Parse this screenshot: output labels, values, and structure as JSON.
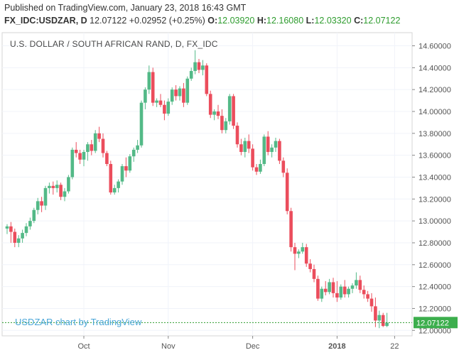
{
  "header": {
    "published": "Published on TradingView.com, January 23, 2018 16:43 GMT",
    "symbol": "FX_IDC:USDZAR, D",
    "last": "12.07122",
    "change": "+0.02952 (+0.25%)",
    "open_label": "O:",
    "open": "12.03920",
    "high_label": "H:",
    "high": "12.16080",
    "low_label": "L:",
    "low": "12.03320",
    "close_label": "C:",
    "close": "12.07122"
  },
  "watermark": "USDZAR chart by TradingView",
  "colors": {
    "up": "#53b987",
    "down": "#eb4d5c",
    "grid": "#f0f3fa",
    "axis": "#555555",
    "lastline": "#2e9c2e"
  },
  "chart_data": {
    "type": "candlestick",
    "title": "U.S. DOLLAR / SOUTH AFRICAN RAND, D, FX_IDC",
    "ylim": [
      11.95,
      14.72
    ],
    "y_ticks": [
      "14.60000",
      "14.40000",
      "14.20000",
      "14.00000",
      "13.80000",
      "13.60000",
      "13.40000",
      "13.20000",
      "13.00000",
      "12.80000",
      "12.60000",
      "12.40000",
      "12.20000",
      "12.00000"
    ],
    "x_labels": [
      {
        "label": "Oct",
        "index": 20,
        "bold": false
      },
      {
        "label": "Nov",
        "index": 42,
        "bold": false
      },
      {
        "label": "Dec",
        "index": 64,
        "bold": false
      },
      {
        "label": "2018",
        "index": 86,
        "bold": true
      },
      {
        "label": "22",
        "index": 101,
        "bold": false
      }
    ],
    "last_price": 12.07122,
    "last_price_label": "12.07122",
    "candles": [
      {
        "o": 12.93,
        "h": 12.97,
        "l": 12.88,
        "c": 12.95
      },
      {
        "o": 12.95,
        "h": 12.99,
        "l": 12.8,
        "c": 12.9
      },
      {
        "o": 12.9,
        "h": 12.93,
        "l": 12.76,
        "c": 12.8
      },
      {
        "o": 12.8,
        "h": 12.87,
        "l": 12.76,
        "c": 12.84
      },
      {
        "o": 12.84,
        "h": 12.92,
        "l": 12.8,
        "c": 12.89
      },
      {
        "o": 12.89,
        "h": 12.98,
        "l": 12.86,
        "c": 12.95
      },
      {
        "o": 12.95,
        "h": 13.03,
        "l": 12.92,
        "c": 13.0
      },
      {
        "o": 13.0,
        "h": 13.12,
        "l": 12.98,
        "c": 13.1
      },
      {
        "o": 13.1,
        "h": 13.21,
        "l": 13.06,
        "c": 13.18
      },
      {
        "o": 13.18,
        "h": 13.22,
        "l": 13.08,
        "c": 13.14
      },
      {
        "o": 13.14,
        "h": 13.32,
        "l": 13.1,
        "c": 13.3
      },
      {
        "o": 13.3,
        "h": 13.35,
        "l": 13.25,
        "c": 13.32
      },
      {
        "o": 13.32,
        "h": 13.36,
        "l": 13.24,
        "c": 13.3
      },
      {
        "o": 13.3,
        "h": 13.37,
        "l": 13.26,
        "c": 13.33
      },
      {
        "o": 13.33,
        "h": 13.35,
        "l": 13.19,
        "c": 13.22
      },
      {
        "o": 13.22,
        "h": 13.3,
        "l": 13.18,
        "c": 13.27
      },
      {
        "o": 13.27,
        "h": 13.42,
        "l": 13.25,
        "c": 13.4
      },
      {
        "o": 13.4,
        "h": 13.67,
        "l": 13.38,
        "c": 13.65
      },
      {
        "o": 13.65,
        "h": 13.72,
        "l": 13.58,
        "c": 13.62
      },
      {
        "o": 13.62,
        "h": 13.65,
        "l": 13.52,
        "c": 13.56
      },
      {
        "o": 13.56,
        "h": 13.65,
        "l": 13.5,
        "c": 13.63
      },
      {
        "o": 13.63,
        "h": 13.72,
        "l": 13.55,
        "c": 13.7
      },
      {
        "o": 13.7,
        "h": 13.74,
        "l": 13.6,
        "c": 13.64
      },
      {
        "o": 13.64,
        "h": 13.83,
        "l": 13.62,
        "c": 13.8
      },
      {
        "o": 13.8,
        "h": 13.86,
        "l": 13.72,
        "c": 13.75
      },
      {
        "o": 13.75,
        "h": 13.8,
        "l": 13.58,
        "c": 13.62
      },
      {
        "o": 13.62,
        "h": 13.64,
        "l": 13.5,
        "c": 13.52
      },
      {
        "o": 13.52,
        "h": 13.55,
        "l": 13.24,
        "c": 13.26
      },
      {
        "o": 13.26,
        "h": 13.33,
        "l": 13.24,
        "c": 13.3
      },
      {
        "o": 13.3,
        "h": 13.38,
        "l": 13.26,
        "c": 13.36
      },
      {
        "o": 13.36,
        "h": 13.52,
        "l": 13.33,
        "c": 13.5
      },
      {
        "o": 13.5,
        "h": 13.58,
        "l": 13.4,
        "c": 13.46
      },
      {
        "o": 13.46,
        "h": 13.61,
        "l": 13.44,
        "c": 13.59
      },
      {
        "o": 13.59,
        "h": 13.67,
        "l": 13.54,
        "c": 13.65
      },
      {
        "o": 13.65,
        "h": 13.74,
        "l": 13.62,
        "c": 13.69
      },
      {
        "o": 13.69,
        "h": 14.1,
        "l": 13.67,
        "c": 14.08
      },
      {
        "o": 14.08,
        "h": 14.22,
        "l": 14.02,
        "c": 14.2
      },
      {
        "o": 14.2,
        "h": 14.42,
        "l": 14.16,
        "c": 14.36
      },
      {
        "o": 14.36,
        "h": 14.4,
        "l": 14.05,
        "c": 14.08
      },
      {
        "o": 14.08,
        "h": 14.12,
        "l": 14.04,
        "c": 14.1
      },
      {
        "o": 14.1,
        "h": 14.16,
        "l": 14.04,
        "c": 14.06
      },
      {
        "o": 14.06,
        "h": 14.1,
        "l": 13.92,
        "c": 13.98
      },
      {
        "o": 13.98,
        "h": 14.12,
        "l": 13.96,
        "c": 14.09
      },
      {
        "o": 14.09,
        "h": 14.22,
        "l": 14.06,
        "c": 14.2
      },
      {
        "o": 14.2,
        "h": 14.24,
        "l": 14.1,
        "c": 14.14
      },
      {
        "o": 14.14,
        "h": 14.23,
        "l": 14.1,
        "c": 14.21
      },
      {
        "o": 14.21,
        "h": 14.26,
        "l": 14.04,
        "c": 14.08
      },
      {
        "o": 14.08,
        "h": 14.32,
        "l": 14.06,
        "c": 14.3
      },
      {
        "o": 14.3,
        "h": 14.4,
        "l": 14.28,
        "c": 14.37
      },
      {
        "o": 14.37,
        "h": 14.56,
        "l": 14.34,
        "c": 14.45
      },
      {
        "o": 14.45,
        "h": 14.48,
        "l": 14.35,
        "c": 14.38
      },
      {
        "o": 14.38,
        "h": 14.47,
        "l": 14.33,
        "c": 14.42
      },
      {
        "o": 14.42,
        "h": 14.44,
        "l": 14.14,
        "c": 14.16
      },
      {
        "o": 14.16,
        "h": 14.19,
        "l": 13.94,
        "c": 13.97
      },
      {
        "o": 13.97,
        "h": 14.02,
        "l": 13.92,
        "c": 14.0
      },
      {
        "o": 14.0,
        "h": 14.06,
        "l": 13.93,
        "c": 13.96
      },
      {
        "o": 13.96,
        "h": 14.02,
        "l": 13.8,
        "c": 13.83
      },
      {
        "o": 13.83,
        "h": 13.94,
        "l": 13.8,
        "c": 13.91
      },
      {
        "o": 13.91,
        "h": 14.16,
        "l": 13.88,
        "c": 14.14
      },
      {
        "o": 14.14,
        "h": 14.16,
        "l": 13.84,
        "c": 13.87
      },
      {
        "o": 13.87,
        "h": 13.9,
        "l": 13.67,
        "c": 13.7
      },
      {
        "o": 13.7,
        "h": 13.75,
        "l": 13.6,
        "c": 13.63
      },
      {
        "o": 13.63,
        "h": 13.76,
        "l": 13.58,
        "c": 13.73
      },
      {
        "o": 13.73,
        "h": 13.79,
        "l": 13.62,
        "c": 13.66
      },
      {
        "o": 13.66,
        "h": 13.7,
        "l": 13.46,
        "c": 13.49
      },
      {
        "o": 13.49,
        "h": 13.52,
        "l": 13.42,
        "c": 13.45
      },
      {
        "o": 13.45,
        "h": 13.56,
        "l": 13.43,
        "c": 13.52
      },
      {
        "o": 13.52,
        "h": 13.79,
        "l": 13.5,
        "c": 13.77
      },
      {
        "o": 13.77,
        "h": 13.82,
        "l": 13.6,
        "c": 13.63
      },
      {
        "o": 13.63,
        "h": 13.7,
        "l": 13.58,
        "c": 13.67
      },
      {
        "o": 13.67,
        "h": 13.76,
        "l": 13.63,
        "c": 13.73
      },
      {
        "o": 13.73,
        "h": 13.75,
        "l": 13.52,
        "c": 13.55
      },
      {
        "o": 13.55,
        "h": 13.58,
        "l": 13.4,
        "c": 13.44
      },
      {
        "o": 13.44,
        "h": 13.48,
        "l": 13.06,
        "c": 13.09
      },
      {
        "o": 13.09,
        "h": 13.12,
        "l": 12.72,
        "c": 12.76
      },
      {
        "o": 12.76,
        "h": 12.8,
        "l": 12.55,
        "c": 12.7
      },
      {
        "o": 12.7,
        "h": 12.74,
        "l": 12.66,
        "c": 12.72
      },
      {
        "o": 12.72,
        "h": 12.8,
        "l": 12.7,
        "c": 12.76
      },
      {
        "o": 12.76,
        "h": 12.79,
        "l": 12.58,
        "c": 12.61
      },
      {
        "o": 12.61,
        "h": 12.65,
        "l": 12.53,
        "c": 12.56
      },
      {
        "o": 12.56,
        "h": 12.6,
        "l": 12.44,
        "c": 12.47
      },
      {
        "o": 12.47,
        "h": 12.5,
        "l": 12.27,
        "c": 12.29
      },
      {
        "o": 12.29,
        "h": 12.4,
        "l": 12.26,
        "c": 12.38
      },
      {
        "o": 12.38,
        "h": 12.45,
        "l": 12.32,
        "c": 12.35
      },
      {
        "o": 12.35,
        "h": 12.47,
        "l": 12.33,
        "c": 12.44
      },
      {
        "o": 12.44,
        "h": 12.48,
        "l": 12.3,
        "c": 12.34
      },
      {
        "o": 12.34,
        "h": 12.45,
        "l": 12.26,
        "c": 12.3
      },
      {
        "o": 12.3,
        "h": 12.42,
        "l": 12.28,
        "c": 12.4
      },
      {
        "o": 12.4,
        "h": 12.46,
        "l": 12.3,
        "c": 12.33
      },
      {
        "o": 12.33,
        "h": 12.4,
        "l": 12.3,
        "c": 12.38
      },
      {
        "o": 12.38,
        "h": 12.43,
        "l": 12.34,
        "c": 12.41
      },
      {
        "o": 12.41,
        "h": 12.53,
        "l": 12.38,
        "c": 12.46
      },
      {
        "o": 12.46,
        "h": 12.5,
        "l": 12.34,
        "c": 12.37
      },
      {
        "o": 12.37,
        "h": 12.41,
        "l": 12.29,
        "c": 12.33
      },
      {
        "o": 12.33,
        "h": 12.36,
        "l": 12.26,
        "c": 12.29
      },
      {
        "o": 12.29,
        "h": 12.34,
        "l": 12.17,
        "c": 12.22
      },
      {
        "o": 12.22,
        "h": 12.3,
        "l": 12.03,
        "c": 12.09
      },
      {
        "o": 12.09,
        "h": 12.18,
        "l": 12.02,
        "c": 12.14
      },
      {
        "o": 12.14,
        "h": 12.16,
        "l": 12.03,
        "c": 12.04
      },
      {
        "o": 12.04,
        "h": 12.16,
        "l": 12.03,
        "c": 12.07
      }
    ]
  }
}
